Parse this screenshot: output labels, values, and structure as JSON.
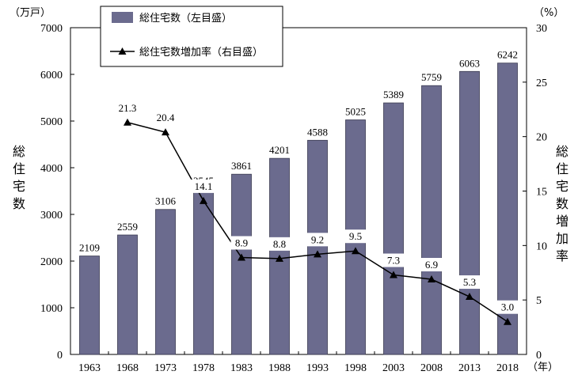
{
  "chart_data": {
    "type": "bar",
    "categories": [
      "1963",
      "1968",
      "1973",
      "1978",
      "1983",
      "1988",
      "1993",
      "1998",
      "2003",
      "2008",
      "2013",
      "2018"
    ],
    "series": [
      {
        "name": "総住宅数（左目盛）",
        "type": "bar",
        "axis": "left",
        "values": [
          2109,
          2559,
          3106,
          3545,
          3861,
          4201,
          4588,
          5025,
          5389,
          5759,
          6063,
          6242
        ]
      },
      {
        "name": "総住宅数増加率（右目盛）",
        "type": "line",
        "axis": "right",
        "values": [
          null,
          21.3,
          20.4,
          14.1,
          8.9,
          8.8,
          9.2,
          9.5,
          7.3,
          6.9,
          5.3,
          3.0
        ],
        "labels": [
          "",
          "21.3",
          "20.4",
          "14.1",
          "8.9",
          "8.8",
          "9.2",
          "9.5",
          "7.3",
          "6.9",
          "5.3",
          "3.0"
        ]
      }
    ],
    "ylim_left": [
      0,
      7000
    ],
    "ylim_right": [
      0,
      30
    ],
    "left_ticks": [
      "0",
      "1000",
      "2000",
      "3000",
      "4000",
      "5000",
      "6000",
      "7000"
    ],
    "right_ticks": [
      "0",
      "5",
      "10",
      "15",
      "20",
      "25",
      "30"
    ],
    "left_unit": "（万戸）",
    "right_unit": "（%）",
    "x_unit": "（年）",
    "ylabel_left": "総住宅数",
    "ylabel_right": "総住宅数増加率",
    "legend_placement": "top-center",
    "colors": {
      "bar": "#6b6b8e",
      "line": "#000000"
    }
  }
}
